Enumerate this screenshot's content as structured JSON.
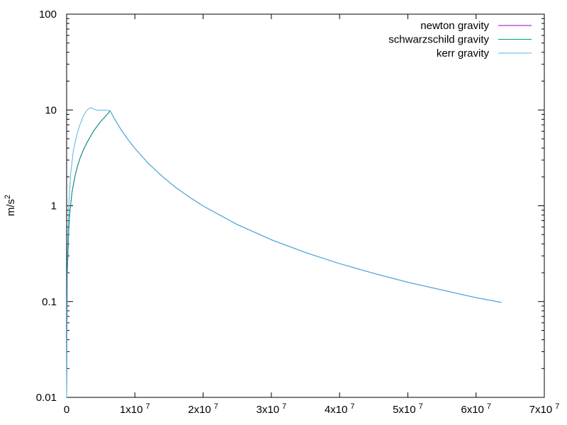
{
  "chart_data": {
    "type": "line",
    "title": "",
    "xlabel": "",
    "ylabel": "m/s",
    "ylabel_superscript": "2",
    "xscale": "linear",
    "yscale": "log",
    "xlim": [
      0,
      70000000
    ],
    "ylim": [
      0.01,
      100
    ],
    "grid": false,
    "legend_position": "top-right",
    "x_ticks": [
      {
        "value": 0,
        "label": "0",
        "sup": ""
      },
      {
        "value": 10000000,
        "label": "1x10",
        "sup": "7"
      },
      {
        "value": 20000000,
        "label": "2x10",
        "sup": "7"
      },
      {
        "value": 30000000,
        "label": "3x10",
        "sup": "7"
      },
      {
        "value": 40000000,
        "label": "4x10",
        "sup": "7"
      },
      {
        "value": 50000000,
        "label": "5x10",
        "sup": "7"
      },
      {
        "value": 60000000,
        "label": "6x10",
        "sup": "7"
      },
      {
        "value": 70000000,
        "label": "7x10",
        "sup": "7"
      }
    ],
    "y_ticks": [
      {
        "value": 0.01,
        "label": "0.01"
      },
      {
        "value": 0.1,
        "label": "0.1"
      },
      {
        "value": 1,
        "label": "1"
      },
      {
        "value": 10,
        "label": "10"
      },
      {
        "value": 100,
        "label": "100"
      }
    ],
    "series": [
      {
        "name": "newton gravity",
        "color": "#9400d3",
        "x": [
          0,
          100000,
          300000,
          500000,
          800000,
          1200000,
          1600000,
          2000000,
          2500000,
          3000000,
          3500000,
          4000000,
          4500000,
          5000000,
          5500000,
          6000000,
          6370000,
          7000000,
          8000000,
          9000000,
          10000000,
          12000000,
          14000000,
          16000000,
          18000000,
          20000000,
          25000000,
          30000000,
          35000000,
          40000000,
          45000000,
          50000000,
          55000000,
          60000000,
          63700000
        ],
        "y": [
          0.01,
          0.2,
          0.55,
          0.9,
          1.4,
          2.0,
          2.6,
          3.2,
          3.9,
          4.6,
          5.3,
          6.1,
          6.8,
          7.6,
          8.3,
          9.1,
          9.8,
          8.1,
          6.2,
          4.9,
          3.98,
          2.76,
          2.03,
          1.55,
          1.23,
          0.995,
          0.637,
          0.442,
          0.325,
          0.249,
          0.197,
          0.159,
          0.132,
          0.11,
          0.098
        ]
      },
      {
        "name": "schwarzschild gravity",
        "color": "#009e73",
        "x": [
          0,
          100000,
          300000,
          500000,
          800000,
          1200000,
          1600000,
          2000000,
          2500000,
          3000000,
          3500000,
          4000000,
          4500000,
          5000000,
          5500000,
          6000000,
          6370000,
          7000000,
          8000000,
          9000000,
          10000000,
          12000000,
          14000000,
          16000000,
          18000000,
          20000000,
          25000000,
          30000000,
          35000000,
          40000000,
          45000000,
          50000000,
          55000000,
          60000000,
          63700000
        ],
        "y": [
          0.01,
          0.2,
          0.55,
          0.9,
          1.4,
          2.0,
          2.6,
          3.2,
          3.9,
          4.6,
          5.3,
          6.1,
          6.8,
          7.6,
          8.3,
          9.1,
          9.8,
          8.1,
          6.2,
          4.9,
          3.98,
          2.76,
          2.03,
          1.55,
          1.23,
          0.995,
          0.637,
          0.442,
          0.325,
          0.249,
          0.197,
          0.159,
          0.132,
          0.11,
          0.098
        ]
      },
      {
        "name": "kerr gravity",
        "color": "#56b4e9",
        "x": [
          0,
          100000,
          300000,
          600000,
          1000000,
          1500000,
          2000000,
          2500000,
          3000000,
          3500000,
          4000000,
          4500000,
          5000000,
          5500000,
          6000000,
          6370000,
          7000000,
          8000000,
          9000000,
          10000000,
          12000000,
          14000000,
          16000000,
          18000000,
          20000000,
          25000000,
          30000000,
          35000000,
          40000000,
          45000000,
          50000000,
          55000000,
          60000000,
          63700000
        ],
        "y": [
          0.01,
          0.3,
          1.0,
          2.2,
          3.8,
          5.5,
          7.2,
          8.8,
          10.0,
          10.6,
          10.2,
          9.9,
          9.9,
          10.0,
          9.9,
          9.8,
          8.1,
          6.2,
          4.9,
          3.98,
          2.76,
          2.03,
          1.55,
          1.23,
          0.995,
          0.637,
          0.442,
          0.325,
          0.249,
          0.197,
          0.159,
          0.132,
          0.11,
          0.098
        ]
      }
    ]
  }
}
